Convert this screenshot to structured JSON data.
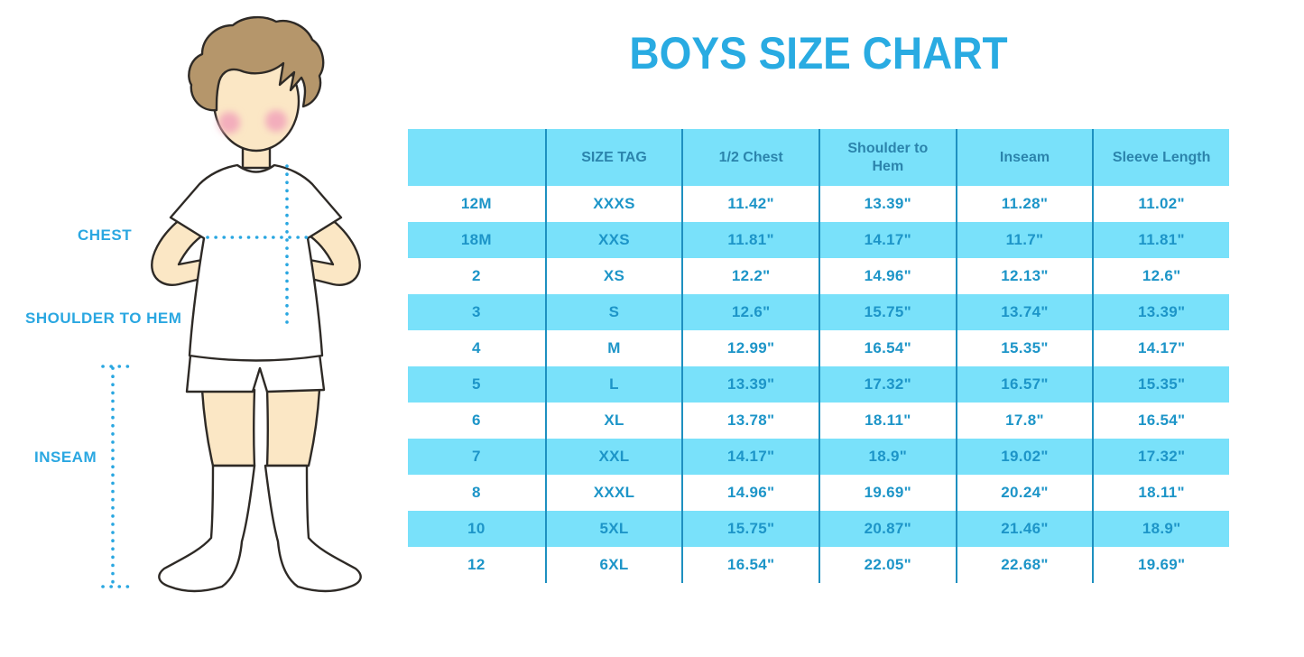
{
  "title": "BOYS SIZE CHART",
  "figure_labels": {
    "chest": "CHEST",
    "shoulder_to_hem": "SHOULDER TO HEM",
    "inseam": "INSEAM"
  },
  "colors": {
    "accent_blue": "#29ABE2",
    "table_stripe": "#79E1FA",
    "table_border": "#1E90C0",
    "header_text": "#2B84AC",
    "cell_text": "#1D95C8",
    "measure_line": "#2AA7E1",
    "hair": "#B5966B",
    "skin": "#FBE7C5",
    "blush": "#F3ADBC",
    "outline": "#2E2A26"
  },
  "chart_data": {
    "type": "table",
    "title": "BOYS SIZE CHART",
    "columns": [
      "",
      "SIZE TAG",
      "1/2 Chest",
      "Shoulder to Hem",
      "Inseam",
      "Sleeve Length"
    ],
    "rows": [
      [
        "12M",
        "XXXS",
        "11.42\"",
        "13.39\"",
        "11.28\"",
        "11.02\""
      ],
      [
        "18M",
        "XXS",
        "11.81\"",
        "14.17\"",
        "11.7\"",
        "11.81\""
      ],
      [
        "2",
        "XS",
        "12.2\"",
        "14.96\"",
        "12.13\"",
        "12.6\""
      ],
      [
        "3",
        "S",
        "12.6\"",
        "15.75\"",
        "13.74\"",
        "13.39\""
      ],
      [
        "4",
        "M",
        "12.99\"",
        "16.54\"",
        "15.35\"",
        "14.17\""
      ],
      [
        "5",
        "L",
        "13.39\"",
        "17.32\"",
        "16.57\"",
        "15.35\""
      ],
      [
        "6",
        "XL",
        "13.78\"",
        "18.11\"",
        "17.8\"",
        "16.54\""
      ],
      [
        "7",
        "XXL",
        "14.17\"",
        "18.9\"",
        "19.02\"",
        "17.32\""
      ],
      [
        "8",
        "XXXL",
        "14.96\"",
        "19.69\"",
        "20.24\"",
        "18.11\""
      ],
      [
        "10",
        "5XL",
        "15.75\"",
        "20.87\"",
        "21.46\"",
        "18.9\""
      ],
      [
        "12",
        "6XL",
        "16.54\"",
        "22.05\"",
        "22.68\"",
        "19.69\""
      ]
    ]
  }
}
